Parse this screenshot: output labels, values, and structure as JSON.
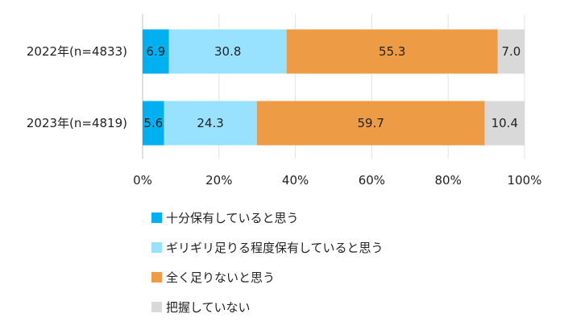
{
  "chart_data": {
    "type": "bar",
    "orientation": "horizontal",
    "stacked": "percent",
    "categories": [
      "2022年(n=4833)",
      "2023年(n=4819)"
    ],
    "series": [
      {
        "name": "十分保有していると思う",
        "color": "#00b0f0",
        "values": [
          6.9,
          5.6
        ]
      },
      {
        "name": "ギリギリ足りる程度保有していると思う",
        "color": "#99e2ff",
        "values": [
          30.8,
          24.3
        ]
      },
      {
        "name": "全く足りないと思う",
        "color": "#ed9b44",
        "values": [
          55.3,
          59.7
        ]
      },
      {
        "name": "把握していない",
        "color": "#d9d9d9",
        "values": [
          7.0,
          10.4
        ]
      }
    ],
    "data_labels": [
      [
        "6.9",
        "30.8",
        "55.3",
        "7.0"
      ],
      [
        "5.6",
        "24.3",
        "59.7",
        "10.4"
      ]
    ],
    "xlim": [
      0,
      100
    ],
    "xticks": [
      "0%",
      "20%",
      "40%",
      "60%",
      "80%",
      "100%"
    ],
    "grid": "vertical",
    "legend_position": "bottom"
  }
}
